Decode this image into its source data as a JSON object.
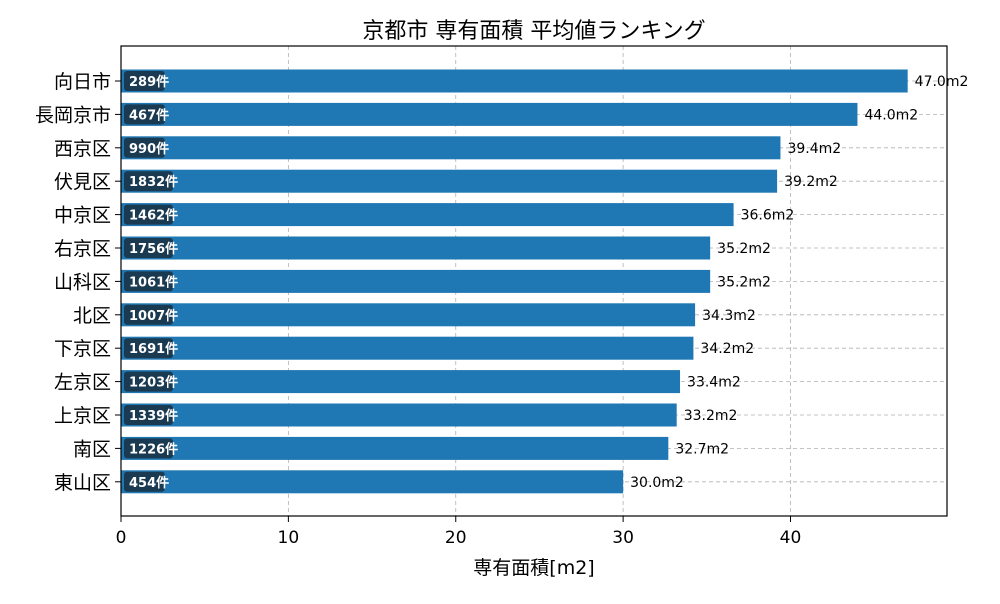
{
  "chart_data": {
    "type": "bar",
    "orientation": "horizontal",
    "title": "京都市 専有面積 平均値ランキング",
    "xlabel": "専有面積[m2]",
    "ylabel": "",
    "xlim": [
      0,
      49.35
    ],
    "xticks": [
      0,
      10,
      20,
      30,
      40
    ],
    "grid": true,
    "value_unit": "m2",
    "count_unit": "件",
    "categories": [
      "向日市",
      "長岡京市",
      "西京区",
      "伏見区",
      "中京区",
      "右京区",
      "山科区",
      "北区",
      "下京区",
      "左京区",
      "上京区",
      "南区",
      "東山区"
    ],
    "values": [
      47.0,
      44.0,
      39.4,
      39.2,
      36.6,
      35.2,
      35.2,
      34.3,
      34.2,
      33.4,
      33.2,
      32.7,
      30.0
    ],
    "value_labels": [
      "47.0m2",
      "44.0m2",
      "39.4m2",
      "39.2m2",
      "36.6m2",
      "35.2m2",
      "35.2m2",
      "34.3m2",
      "34.2m2",
      "33.4m2",
      "33.2m2",
      "32.7m2",
      "30.0m2"
    ],
    "counts": [
      "289件",
      "467件",
      "990件",
      "1832件",
      "1462件",
      "1756件",
      "1061件",
      "1007件",
      "1691件",
      "1203件",
      "1339件",
      "1226件",
      "454件"
    ],
    "bar_color": "#1f77b4",
    "badge_color": "#1a3a52"
  }
}
